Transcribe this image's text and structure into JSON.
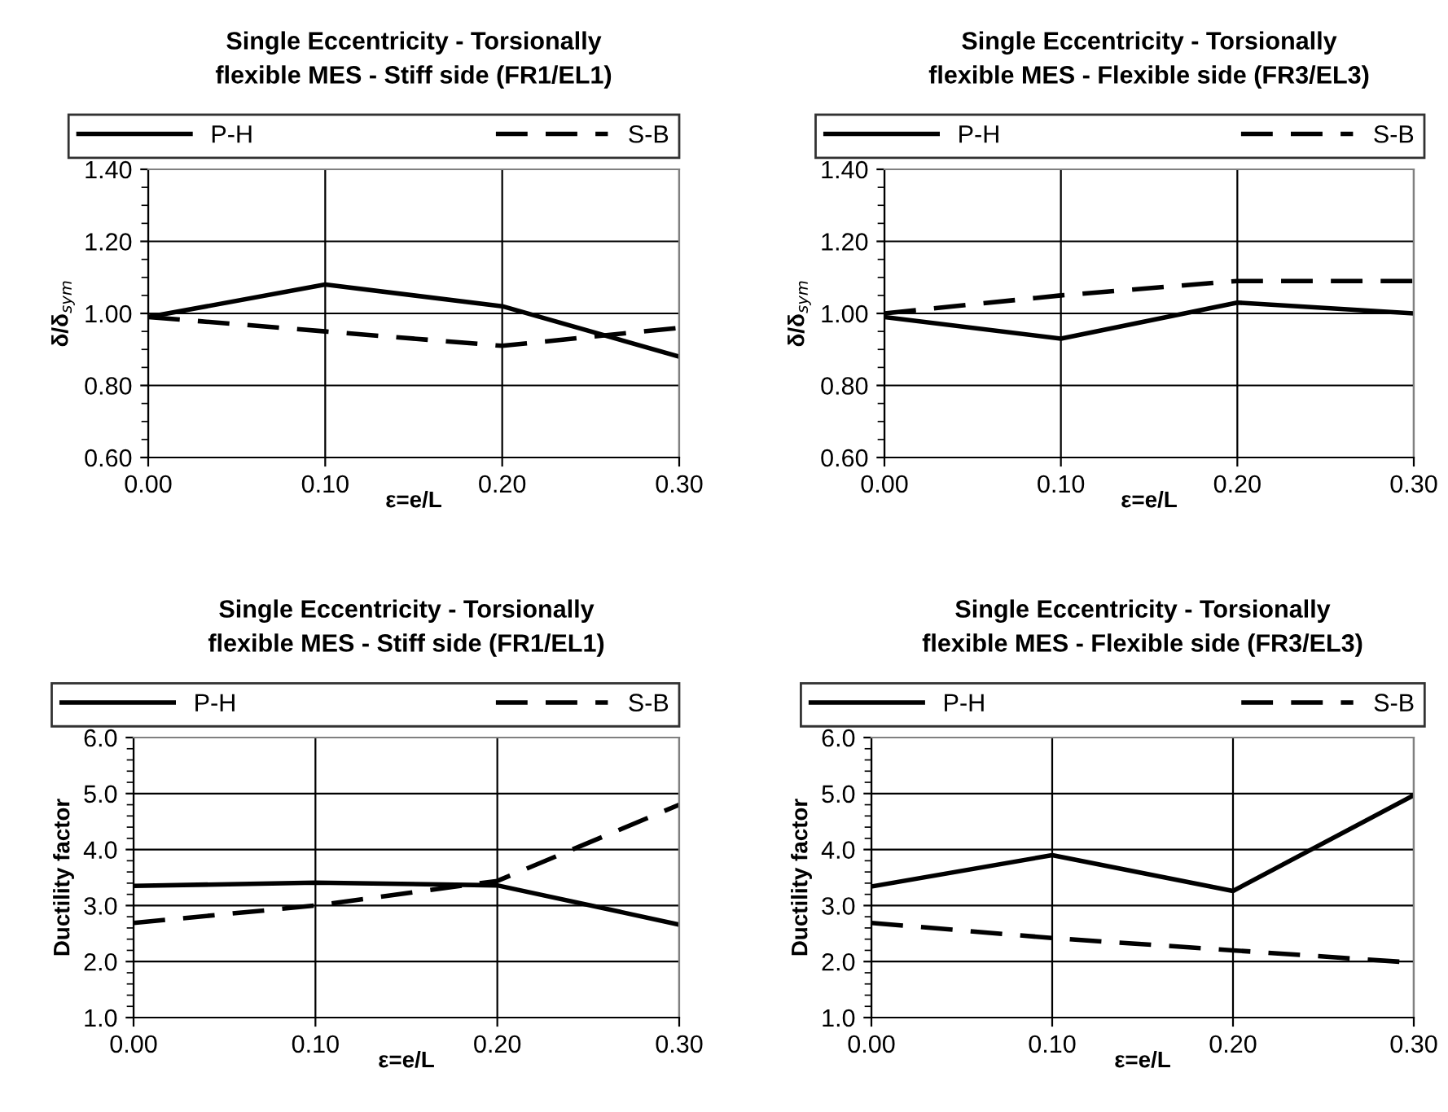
{
  "chart_data": [
    {
      "type": "line",
      "title": "Single Eccentricity - Torsionally\nflexible MES - Stiff side (FR1/EL1)",
      "xlabel": "ε=e/L",
      "ylabel": "δ/δ$_{sym}$",
      "x": [
        0.0,
        0.1,
        0.2,
        0.3
      ],
      "xlim": [
        0.0,
        0.3
      ],
      "xticks": [
        {
          "value": 0.0,
          "label": "0.00"
        },
        {
          "value": 0.1,
          "label": "0.10"
        },
        {
          "value": 0.2,
          "label": "0.20"
        },
        {
          "value": 0.3,
          "label": "0.30"
        }
      ],
      "ylim": [
        0.6,
        1.4
      ],
      "yticks": [
        {
          "value": 0.6,
          "label": "0.60"
        },
        {
          "value": 0.8,
          "label": "0.80"
        },
        {
          "value": 1.0,
          "label": "1.00"
        },
        {
          "value": 1.2,
          "label": "1.20"
        },
        {
          "value": 1.4,
          "label": "1.40"
        }
      ],
      "grid": true,
      "legend": "top",
      "marker": "none",
      "series": [
        {
          "name": "P-H",
          "color": "#000000",
          "line_style": "solid",
          "values": [
            0.99,
            1.08,
            1.02,
            0.88
          ]
        },
        {
          "name": "S-B",
          "color": "#000000",
          "line_style": "dashed",
          "values": [
            0.99,
            0.95,
            0.91,
            0.96
          ]
        }
      ]
    },
    {
      "type": "line",
      "title": "Single Eccentricity - Torsionally\nflexible MES - Flexible side (FR3/EL3)",
      "xlabel": "ε=e/L",
      "ylabel": "δ/δ$_{sym}$",
      "x": [
        0.0,
        0.1,
        0.2,
        0.3
      ],
      "xlim": [
        0.0,
        0.3
      ],
      "xticks": [
        {
          "value": 0.0,
          "label": "0.00"
        },
        {
          "value": 0.1,
          "label": "0.10"
        },
        {
          "value": 0.2,
          "label": "0.20"
        },
        {
          "value": 0.3,
          "label": "0.30"
        }
      ],
      "ylim": [
        0.6,
        1.4
      ],
      "yticks": [
        {
          "value": 0.6,
          "label": "0.60"
        },
        {
          "value": 0.8,
          "label": "0.80"
        },
        {
          "value": 1.0,
          "label": "1.00"
        },
        {
          "value": 1.2,
          "label": "1.20"
        },
        {
          "value": 1.4,
          "label": "1.40"
        }
      ],
      "grid": true,
      "legend": "top",
      "marker": "none",
      "series": [
        {
          "name": "P-H",
          "color": "#000000",
          "line_style": "solid",
          "values": [
            0.99,
            0.93,
            1.03,
            1.0
          ]
        },
        {
          "name": "S-B",
          "color": "#000000",
          "line_style": "dashed",
          "values": [
            1.0,
            1.05,
            1.09,
            1.09
          ]
        }
      ]
    },
    {
      "type": "line",
      "title": "Single Eccentricity - Torsionally\nflexible MES - Stiff side (FR1/EL1)",
      "xlabel": "ε=e/L",
      "ylabel": "Ductility factor",
      "x": [
        0.0,
        0.1,
        0.2,
        0.3
      ],
      "xlim": [
        0.0,
        0.3
      ],
      "xticks": [
        {
          "value": 0.0,
          "label": "0.00"
        },
        {
          "value": 0.1,
          "label": "0.10"
        },
        {
          "value": 0.2,
          "label": "0.20"
        },
        {
          "value": 0.3,
          "label": "0.30"
        }
      ],
      "ylim": [
        1.0,
        6.0
      ],
      "yticks": [
        {
          "value": 1.0,
          "label": "1.0"
        },
        {
          "value": 2.0,
          "label": "2.0"
        },
        {
          "value": 3.0,
          "label": "3.0"
        },
        {
          "value": 4.0,
          "label": "4.0"
        },
        {
          "value": 5.0,
          "label": "5.0"
        },
        {
          "value": 6.0,
          "label": "6.0"
        }
      ],
      "grid": true,
      "legend": "top",
      "marker": "none",
      "series": [
        {
          "name": "P-H",
          "color": "#000000",
          "line_style": "solid",
          "values": [
            3.35,
            3.41,
            3.36,
            2.66
          ]
        },
        {
          "name": "S-B",
          "color": "#000000",
          "line_style": "dashed",
          "values": [
            2.69,
            3.0,
            3.44,
            4.8
          ]
        }
      ]
    },
    {
      "type": "line",
      "title": "Single Eccentricity - Torsionally\nflexible MES - Flexible side (FR3/EL3)",
      "xlabel": "ε=e/L",
      "ylabel": "Ductility factor",
      "x": [
        0.0,
        0.1,
        0.2,
        0.3
      ],
      "xlim": [
        0.0,
        0.3
      ],
      "xticks": [
        {
          "value": 0.0,
          "label": "0.00"
        },
        {
          "value": 0.1,
          "label": "0.10"
        },
        {
          "value": 0.2,
          "label": "0.20"
        },
        {
          "value": 0.3,
          "label": "0.30"
        }
      ],
      "ylim": [
        1.0,
        6.0
      ],
      "yticks": [
        {
          "value": 1.0,
          "label": "1.0"
        },
        {
          "value": 2.0,
          "label": "2.0"
        },
        {
          "value": 3.0,
          "label": "3.0"
        },
        {
          "value": 4.0,
          "label": "4.0"
        },
        {
          "value": 5.0,
          "label": "5.0"
        },
        {
          "value": 6.0,
          "label": "6.0"
        }
      ],
      "grid": true,
      "legend": "top",
      "marker": "none",
      "series": [
        {
          "name": "P-H",
          "color": "#000000",
          "line_style": "solid",
          "values": [
            3.34,
            3.9,
            3.26,
            4.97
          ]
        },
        {
          "name": "S-B",
          "color": "#000000",
          "line_style": "dashed",
          "values": [
            2.69,
            2.42,
            2.2,
            1.98
          ]
        }
      ]
    }
  ]
}
